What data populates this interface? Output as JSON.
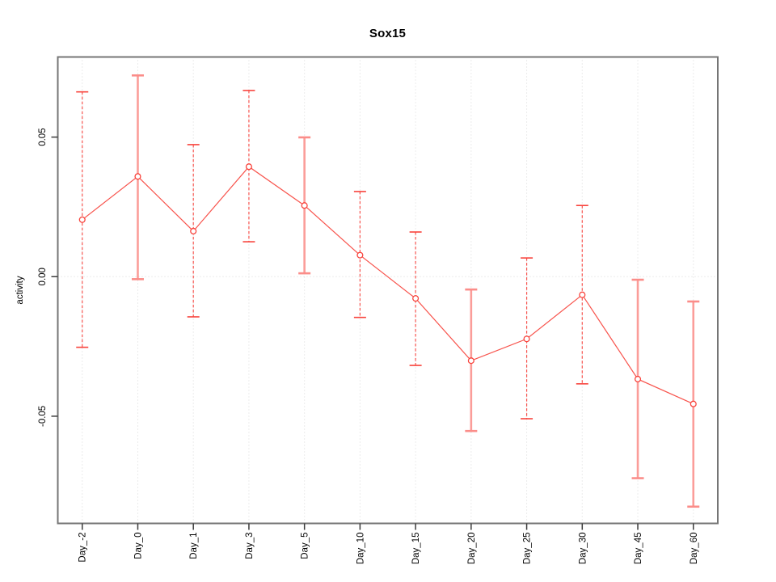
{
  "chart_data": {
    "type": "line",
    "title": "Sox15",
    "ylabel": "activity",
    "xlabel": "",
    "legend": "none",
    "categories": [
      "Day_-2",
      "Day_0",
      "Day_1",
      "Day_3",
      "Day_5",
      "Day_10",
      "Day_15",
      "Day_20",
      "Day_25",
      "Day_30",
      "Day_45",
      "Day_60"
    ],
    "series": [
      {
        "name": "activity",
        "values": [
          0.0204,
          0.0359,
          0.0163,
          0.0394,
          0.0255,
          0.0077,
          -0.0078,
          -0.0301,
          -0.0223,
          -0.0065,
          -0.0367,
          -0.0456
        ],
        "error_high": [
          0.0662,
          0.0721,
          0.0473,
          0.0667,
          0.0499,
          0.0305,
          0.016,
          -0.0046,
          0.0067,
          0.0255,
          -0.0011,
          -0.0089
        ],
        "error_low": [
          -0.0253,
          -0.0009,
          -0.0144,
          0.0125,
          0.0012,
          -0.0146,
          -0.0318,
          -0.0553,
          -0.0509,
          -0.0384,
          -0.0722,
          -0.0824
        ],
        "bar_style": [
          "dashed",
          "solid",
          "dashed",
          "dashed",
          "solid",
          "dashed",
          "dashed",
          "solid",
          "dashed",
          "dashed",
          "solid",
          "solid"
        ]
      }
    ],
    "ylim": [
      -0.0884,
      0.0787
    ],
    "yticks": [
      -0.05,
      0.0,
      0.05
    ],
    "ytick_labels": [
      "-0.05",
      "0.00",
      "0.05"
    ],
    "grid": {
      "vertical": "per-category",
      "horizontal_at": 0,
      "style": "dotted"
    },
    "colors": {
      "point": "#f8433c",
      "line": "#f8534c",
      "bar_solid": "#fb9d99",
      "bar_dashed": "#f85550",
      "cap_solid": "#fb8d89",
      "cap_dashed": "#f8433c",
      "grid": "#d9d9d9",
      "box": "#757575",
      "tick": "#3c3c3c",
      "text": "#000000"
    }
  }
}
